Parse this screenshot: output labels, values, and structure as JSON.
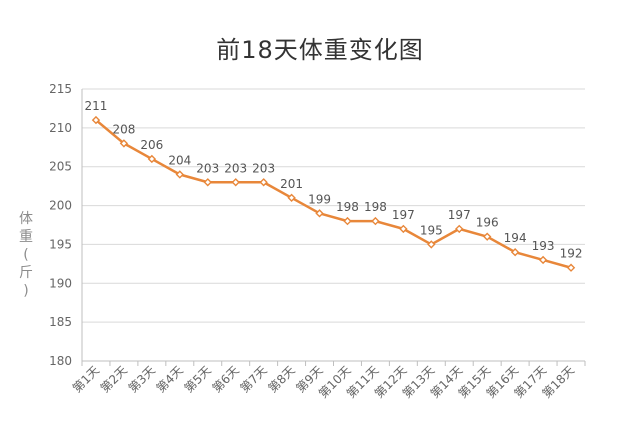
{
  "chart_data": {
    "type": "line",
    "title": "前18天体重变化图",
    "xlabel": "",
    "ylabel": "体重(斤)",
    "ylim": [
      180,
      215
    ],
    "yticks": [
      180,
      185,
      190,
      195,
      200,
      205,
      210,
      215
    ],
    "grid": true,
    "legend": "none",
    "categories": [
      "第1天",
      "第2天",
      "第3天",
      "第4天",
      "第5天",
      "第6天",
      "第7天",
      "第8天",
      "第9天",
      "第10天",
      "第11天",
      "第12天",
      "第13天",
      "第14天",
      "第15天",
      "第16天",
      "第17天",
      "第18天"
    ],
    "series": [
      {
        "values": [
          211,
          208,
          206,
          204,
          203,
          203,
          203,
          201,
          199,
          198,
          198,
          197,
          195,
          197,
          196,
          194,
          193,
          192
        ]
      }
    ],
    "colors": {
      "line": "#e8873a",
      "marker_fill": "#ffffff",
      "grid": "#d9d9d9",
      "axis": "#bfbfbf"
    }
  }
}
